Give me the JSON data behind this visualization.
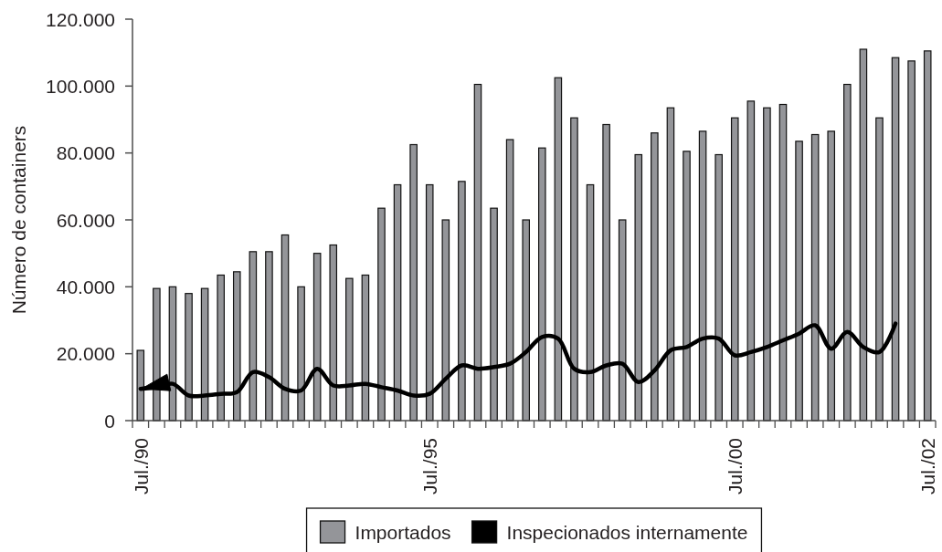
{
  "chart_data": {
    "type": "bar",
    "ylabel": "Número de containers",
    "categories": [
      "Jul./90",
      null,
      null,
      null,
      null,
      null,
      null,
      null,
      null,
      null,
      null,
      null,
      null,
      null,
      null,
      null,
      null,
      null,
      "Jul./95",
      null,
      null,
      null,
      null,
      null,
      null,
      null,
      null,
      null,
      null,
      null,
      null,
      null,
      null,
      null,
      null,
      null,
      null,
      "Jul./00",
      null,
      null,
      null,
      null,
      null,
      null,
      null,
      null,
      null,
      null,
      null,
      "Jul./02"
    ],
    "ylim": [
      0,
      120000
    ],
    "yticks": [
      0,
      {
        "value": 20000,
        "label": "20.000"
      },
      {
        "value": 40000,
        "label": "40.000"
      },
      {
        "value": 60000,
        "label": "60.000"
      },
      {
        "value": 80000,
        "label": "80.000"
      },
      {
        "value": 100000,
        "label": "100.000"
      },
      {
        "value": 120000,
        "label": "120.000"
      }
    ],
    "legend": "bottom",
    "series": [
      {
        "name": "Importados",
        "color": "#949599",
        "values": [
          21000,
          39500,
          40000,
          38000,
          39500,
          43500,
          44500,
          50500,
          50500,
          55500,
          40000,
          50000,
          52500,
          42500,
          43500,
          63500,
          70500,
          82500,
          70500,
          60000,
          71500,
          100500,
          63500,
          84000,
          60000,
          81500,
          102500,
          90500,
          70500,
          88500,
          60000,
          79500,
          86000,
          93500,
          80500,
          86500,
          79500,
          90500,
          95500,
          93500,
          94500,
          83500,
          85500,
          86500,
          100500,
          111000,
          90500,
          108500,
          107500,
          110500
        ]
      },
      {
        "name": "Inspecionados internamente",
        "type": "line",
        "color": "#000000",
        "values": [
          9500,
          10000,
          11000,
          7500,
          7500,
          8000,
          8500,
          14500,
          13000,
          9500,
          9000,
          15500,
          10500,
          10500,
          11000,
          10000,
          9000,
          7500,
          8000,
          12500,
          16500,
          15500,
          16000,
          17000,
          20500,
          25000,
          24500,
          15500,
          14500,
          16500,
          17000,
          11500,
          15000,
          21000,
          22000,
          24500,
          24500,
          19500,
          20500,
          22000,
          24000,
          26000,
          28500,
          21500,
          26500,
          22000,
          20500,
          29000,
          null,
          null
        ]
      }
    ]
  }
}
